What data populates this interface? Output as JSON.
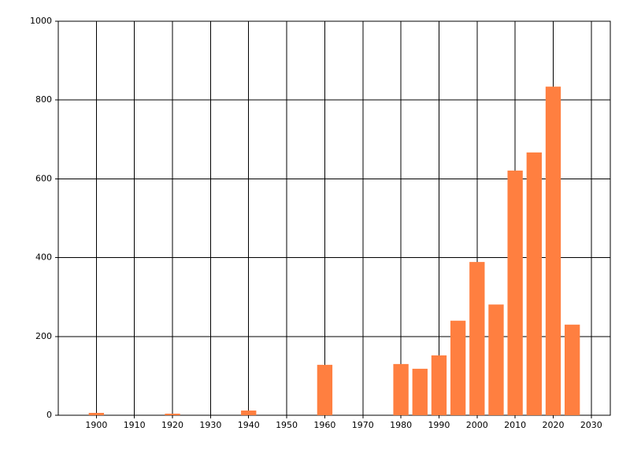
{
  "chart_data": {
    "type": "bar",
    "x": [
      1900,
      1920,
      1940,
      1960,
      1980,
      1985,
      1990,
      1995,
      2000,
      2005,
      2010,
      2015,
      2020,
      2025
    ],
    "values": [
      6,
      4,
      12,
      128,
      130,
      118,
      152,
      240,
      389,
      281,
      621,
      667,
      834,
      230
    ],
    "color": "#ff7f40",
    "xlim": [
      1890,
      2035
    ],
    "xticks": [
      1900,
      1910,
      1920,
      1930,
      1940,
      1950,
      1960,
      1970,
      1980,
      1990,
      2000,
      2010,
      2020,
      2030
    ],
    "ylim": [
      0,
      1000
    ],
    "yticks": [
      0,
      200,
      400,
      600,
      800,
      1000
    ],
    "grid": true
  }
}
